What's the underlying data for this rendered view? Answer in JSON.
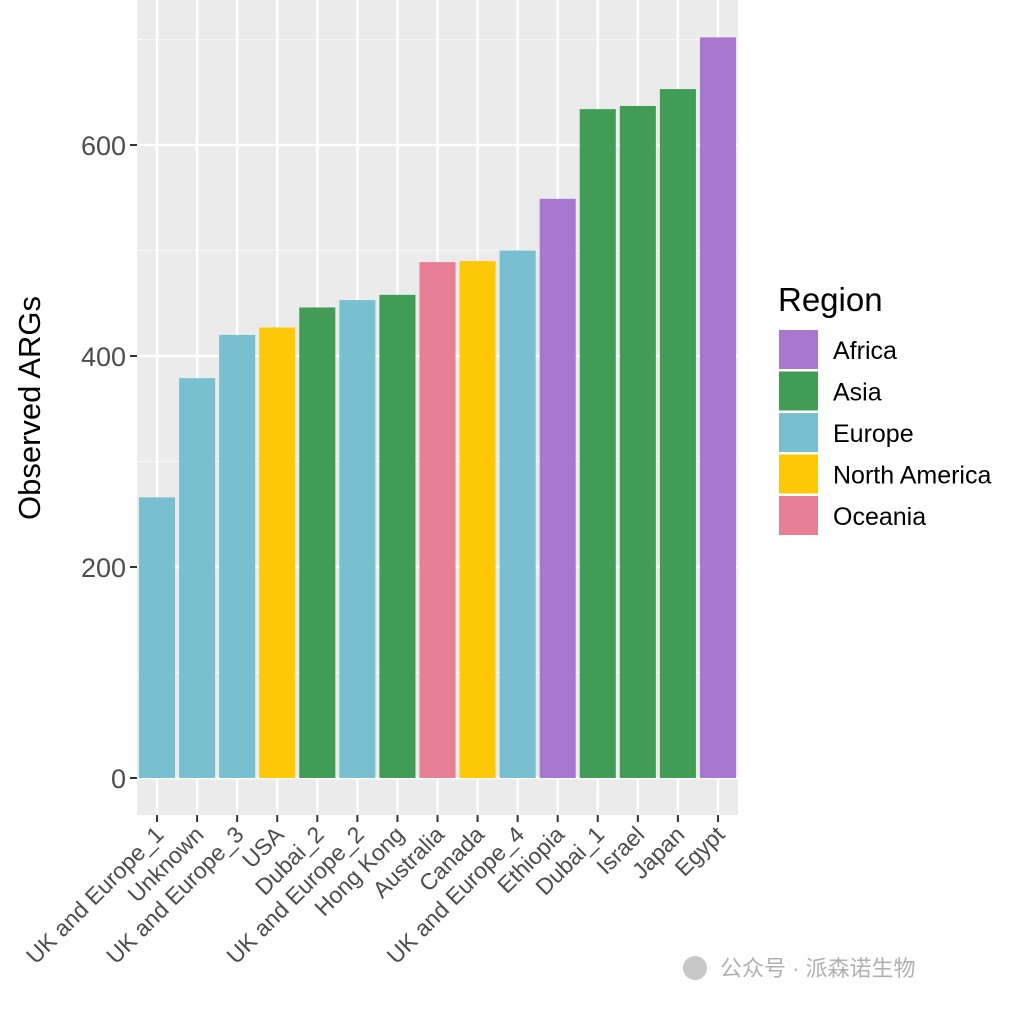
{
  "chart_data": {
    "type": "bar",
    "title": "",
    "xlabel": "",
    "ylabel": "Observed ARGs",
    "ylim": [
      0,
      740
    ],
    "yticks": [
      0,
      200,
      400,
      600
    ],
    "grid": true,
    "categories": [
      "UK and Europe_1",
      "Unknown",
      "UK and Europe_3",
      "USA",
      "Dubai_2",
      "UK and Europe_2",
      "Hong Kong",
      "Australia",
      "Canada",
      "UK and Europe_4",
      "Ethiopia",
      "Dubai_1",
      "Israel",
      "Japan",
      "Egypt"
    ],
    "values": [
      266,
      379,
      420,
      427,
      446,
      453,
      458,
      489,
      490,
      500,
      549,
      634,
      637,
      653,
      702
    ],
    "regions": [
      "Europe",
      "Europe",
      "Europe",
      "North America",
      "Asia",
      "Europe",
      "Asia",
      "Oceania",
      "North America",
      "Europe",
      "Africa",
      "Asia",
      "Asia",
      "Asia",
      "Africa"
    ],
    "legend": {
      "title": "Region",
      "placement": "right",
      "entries": [
        {
          "label": "Africa",
          "color": "#a877cf"
        },
        {
          "label": "Asia",
          "color": "#419d55"
        },
        {
          "label": "Europe",
          "color": "#78c0cf"
        },
        {
          "label": "North America",
          "color": "#fdc807"
        },
        {
          "label": "Oceania",
          "color": "#e97f95"
        }
      ]
    }
  },
  "watermark": "公众号 · 派森诺生物"
}
